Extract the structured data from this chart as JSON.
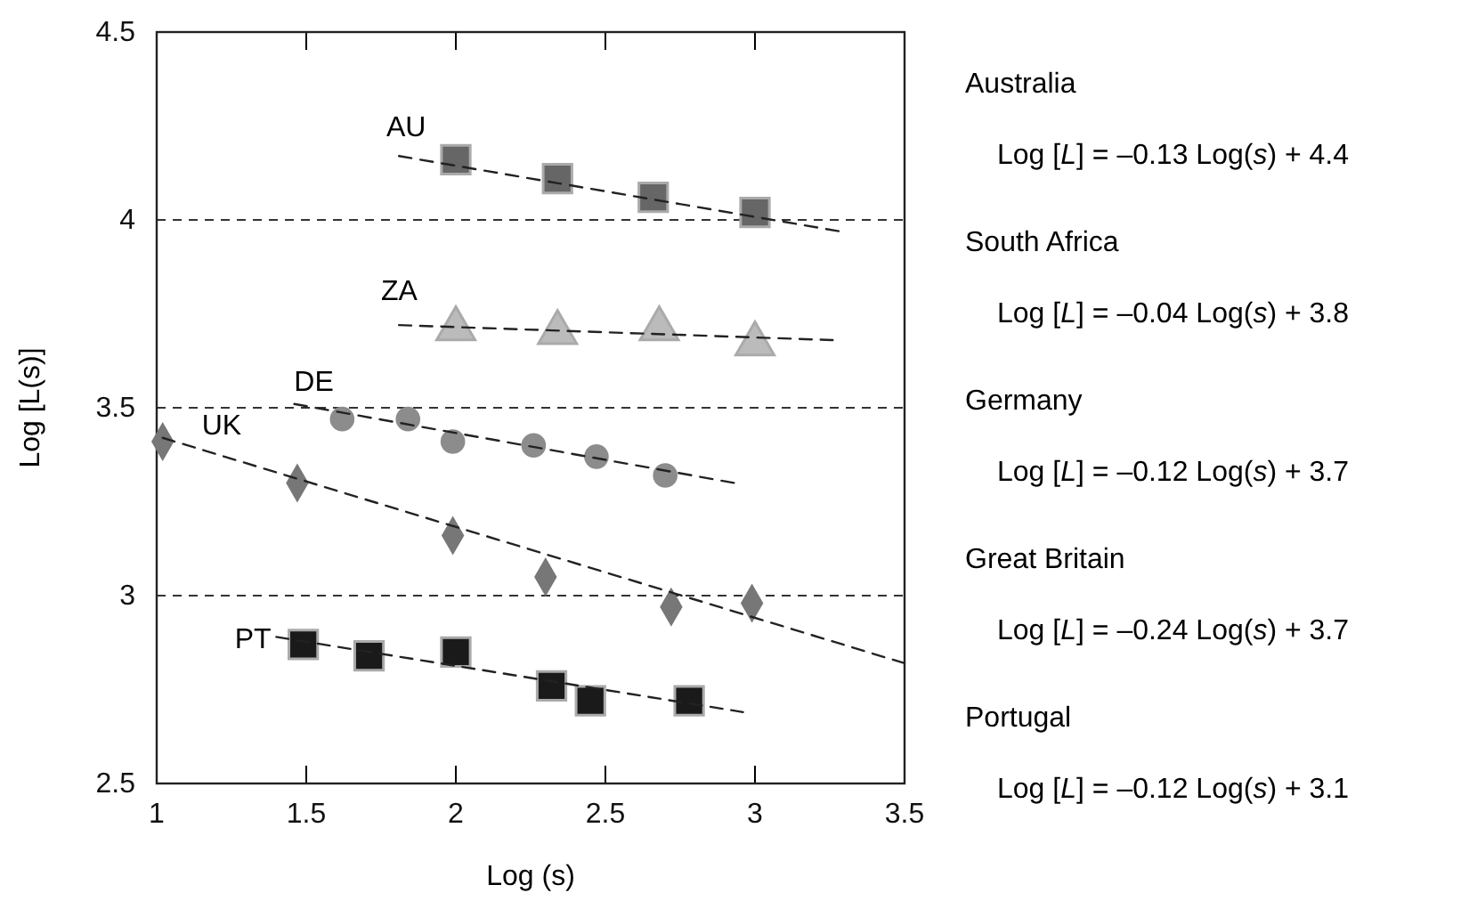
{
  "chart_data": {
    "type": "scatter",
    "xlabel": "Log (s)",
    "ylabel": "Log [L(s)]",
    "xlim": [
      1,
      3.5
    ],
    "xticks": [
      1,
      1.5,
      2,
      2.5,
      3,
      3.5
    ],
    "ylim": [
      2.5,
      4.5
    ],
    "yticks": [
      2.5,
      3,
      3.5,
      4,
      4.5
    ],
    "grid": "y",
    "series": [
      {
        "name": "AU",
        "marker": "square",
        "color": "#666666",
        "x": [
          2.0,
          2.34,
          2.66,
          3.0
        ],
        "values": [
          4.16,
          4.11,
          4.06,
          4.02
        ]
      },
      {
        "name": "ZA",
        "marker": "triangle",
        "color": "#bbbbbb",
        "x": [
          2.0,
          2.34,
          2.68,
          3.0
        ],
        "values": [
          3.71,
          3.7,
          3.71,
          3.67
        ]
      },
      {
        "name": "DE",
        "marker": "circle",
        "color": "#8c8c8c",
        "x": [
          1.62,
          1.84,
          1.99,
          2.26,
          2.47,
          2.7
        ],
        "values": [
          3.47,
          3.47,
          3.41,
          3.4,
          3.37,
          3.32
        ]
      },
      {
        "name": "UK",
        "marker": "diamond",
        "color": "#777777",
        "x": [
          1.02,
          1.47,
          1.99,
          2.3,
          2.72,
          2.99
        ],
        "values": [
          3.41,
          3.3,
          3.16,
          3.05,
          2.97,
          2.98
        ]
      },
      {
        "name": "PT",
        "marker": "square",
        "color": "#1a1a1a",
        "x": [
          1.49,
          1.71,
          2.0,
          2.32,
          2.45,
          2.78
        ],
        "values": [
          2.87,
          2.84,
          2.85,
          2.76,
          2.72,
          2.72
        ]
      },
      {
        "type": "line",
        "line_style": "dashed",
        "marker": "none",
        "color": "#222222",
        "x": [
          1.81,
          3.28
        ],
        "values": [
          4.17,
          3.97
        ]
      },
      {
        "type": "line",
        "line_style": "dashed",
        "marker": "none",
        "color": "#222222",
        "x": [
          1.81,
          3.26
        ],
        "values": [
          3.72,
          3.68
        ]
      },
      {
        "type": "line",
        "line_style": "dashed",
        "marker": "none",
        "color": "#222222",
        "x": [
          1.46,
          2.93
        ],
        "values": [
          3.51,
          3.3
        ]
      },
      {
        "type": "line",
        "line_style": "dashed",
        "marker": "none",
        "color": "#222222",
        "x": [
          1.02,
          3.5
        ],
        "values": [
          3.42,
          2.82
        ]
      },
      {
        "type": "line",
        "line_style": "dashed",
        "marker": "none",
        "color": "#222222",
        "x": [
          1.4,
          2.96
        ],
        "values": [
          2.89,
          2.69
        ]
      }
    ],
    "annotations": [
      "Australia",
      "Log [L] = –0.13 Log(s) + 4.4",
      "South Africa",
      "Log [L] = –0.04 Log(s) + 3.8",
      "Germany",
      "Log [L] = –0.12 Log(s) + 3.7",
      "Great Britain",
      "Log [L] = –0.24 Log(s) + 3.7",
      "Portugal",
      "Log [L] = –0.12 Log(s) + 3.1"
    ]
  }
}
